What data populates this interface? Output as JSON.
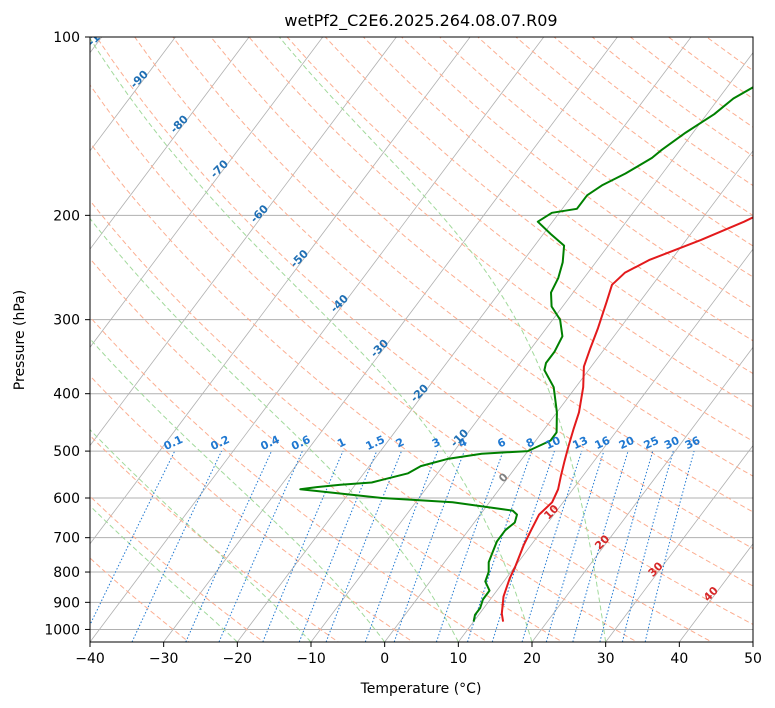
{
  "chart_data": {
    "type": "line",
    "title": "wetPf2_C2E6.2025.264.08.07.R09",
    "xlabel": "Temperature (°C)",
    "ylabel": "Pressure (hPa)",
    "xlim": [
      -40,
      50
    ],
    "ylim": [
      1050,
      100
    ],
    "y_scale": "log",
    "x_ticks": [
      -40,
      -30,
      -20,
      -10,
      0,
      10,
      20,
      30,
      40,
      50
    ],
    "y_ticks": [
      100,
      200,
      300,
      400,
      500,
      600,
      700,
      800,
      900,
      1000
    ],
    "grid": true,
    "series": [
      {
        "name": "Temperature",
        "color": "#e31a1c",
        "points": [
          [
            14,
            970
          ],
          [
            13,
            940
          ],
          [
            11.5,
            880
          ],
          [
            10.5,
            820
          ],
          [
            10,
            780
          ],
          [
            9,
            720
          ],
          [
            8.5,
            680
          ],
          [
            8,
            640
          ],
          [
            8.5,
            610
          ],
          [
            8,
            580
          ],
          [
            7,
            550
          ],
          [
            6,
            520
          ],
          [
            5,
            490
          ],
          [
            4,
            460
          ],
          [
            3,
            430
          ],
          [
            1,
            390
          ],
          [
            -1,
            360
          ],
          [
            -2,
            335
          ],
          [
            -3,
            310
          ],
          [
            -4.5,
            280
          ],
          [
            -5.5,
            262
          ],
          [
            -5,
            250
          ],
          [
            -3,
            238
          ],
          [
            2,
            220
          ],
          [
            6,
            205
          ],
          [
            9.5,
            190
          ],
          [
            12,
            175
          ],
          [
            14,
            160
          ],
          [
            14.5,
            150
          ],
          [
            15.5,
            140
          ],
          [
            18,
            130
          ],
          [
            20,
            125
          ],
          [
            21,
            118
          ],
          [
            22,
            112
          ],
          [
            24,
            105
          ],
          [
            25.5,
            100
          ]
        ]
      },
      {
        "name": "Dewpoint",
        "color": "#008000",
        "points": [
          [
            10,
            970
          ],
          [
            9.5,
            945
          ],
          [
            9.5,
            920
          ],
          [
            9,
            890
          ],
          [
            9,
            860
          ],
          [
            7.5,
            830
          ],
          [
            7,
            800
          ],
          [
            6,
            770
          ],
          [
            5.5,
            740
          ],
          [
            5,
            710
          ],
          [
            5,
            680
          ],
          [
            5.5,
            660
          ],
          [
            5,
            640
          ],
          [
            4,
            630
          ],
          [
            -5,
            610
          ],
          [
            -15,
            600
          ],
          [
            -27,
            580
          ],
          [
            -25,
            575
          ],
          [
            -22,
            570
          ],
          [
            -18,
            565
          ],
          [
            -14,
            545
          ],
          [
            -13,
            530
          ],
          [
            -10,
            515
          ],
          [
            -6,
            505
          ],
          [
            0,
            500
          ],
          [
            2,
            480
          ],
          [
            2,
            465
          ],
          [
            0,
            430
          ],
          [
            -3,
            390
          ],
          [
            -6,
            365
          ],
          [
            -6.5,
            355
          ],
          [
            -6.5,
            340
          ],
          [
            -7,
            320
          ],
          [
            -9,
            300
          ],
          [
            -11.5,
            285
          ],
          [
            -13,
            270
          ],
          [
            -13.5,
            255
          ],
          [
            -14.5,
            240
          ],
          [
            -16,
            225
          ],
          [
            -19,
            215
          ],
          [
            -22,
            205
          ],
          [
            -21,
            198
          ],
          [
            -18,
            195
          ],
          [
            -18,
            185
          ],
          [
            -17,
            178
          ],
          [
            -15,
            170
          ],
          [
            -13,
            160
          ],
          [
            -12.5,
            155
          ],
          [
            -11,
            145
          ],
          [
            -9,
            135
          ],
          [
            -8,
            127
          ],
          [
            -6,
            120
          ],
          [
            -5,
            115
          ],
          [
            -4,
            110
          ],
          [
            -3,
            105
          ],
          [
            -1.5,
            100
          ]
        ]
      }
    ],
    "dry_adiabat_labels": [
      "-100",
      "-90",
      "-80",
      "-70",
      "-60",
      "-50",
      "-40",
      "-30",
      "-20",
      "-10",
      "0",
      "10",
      "20",
      "30",
      "40"
    ],
    "mixing_ratio_labels": [
      "0.1",
      "0.2",
      "0.4",
      "0.6",
      "1",
      "1.5",
      "2",
      "3",
      "4",
      "6",
      "8",
      "10",
      "13",
      "16",
      "20",
      "25",
      "30",
      "36"
    ],
    "colors": {
      "isotherm": "#b0b0b0",
      "dry_adiabat": "#fcae91",
      "moist_adiabat": "#a1d99b",
      "mixing_ratio": "#1f78d1",
      "dry_label_cold": "#1f6fb4",
      "dry_label_warm": "#d62728",
      "dry_label_zero": "#808080"
    }
  }
}
